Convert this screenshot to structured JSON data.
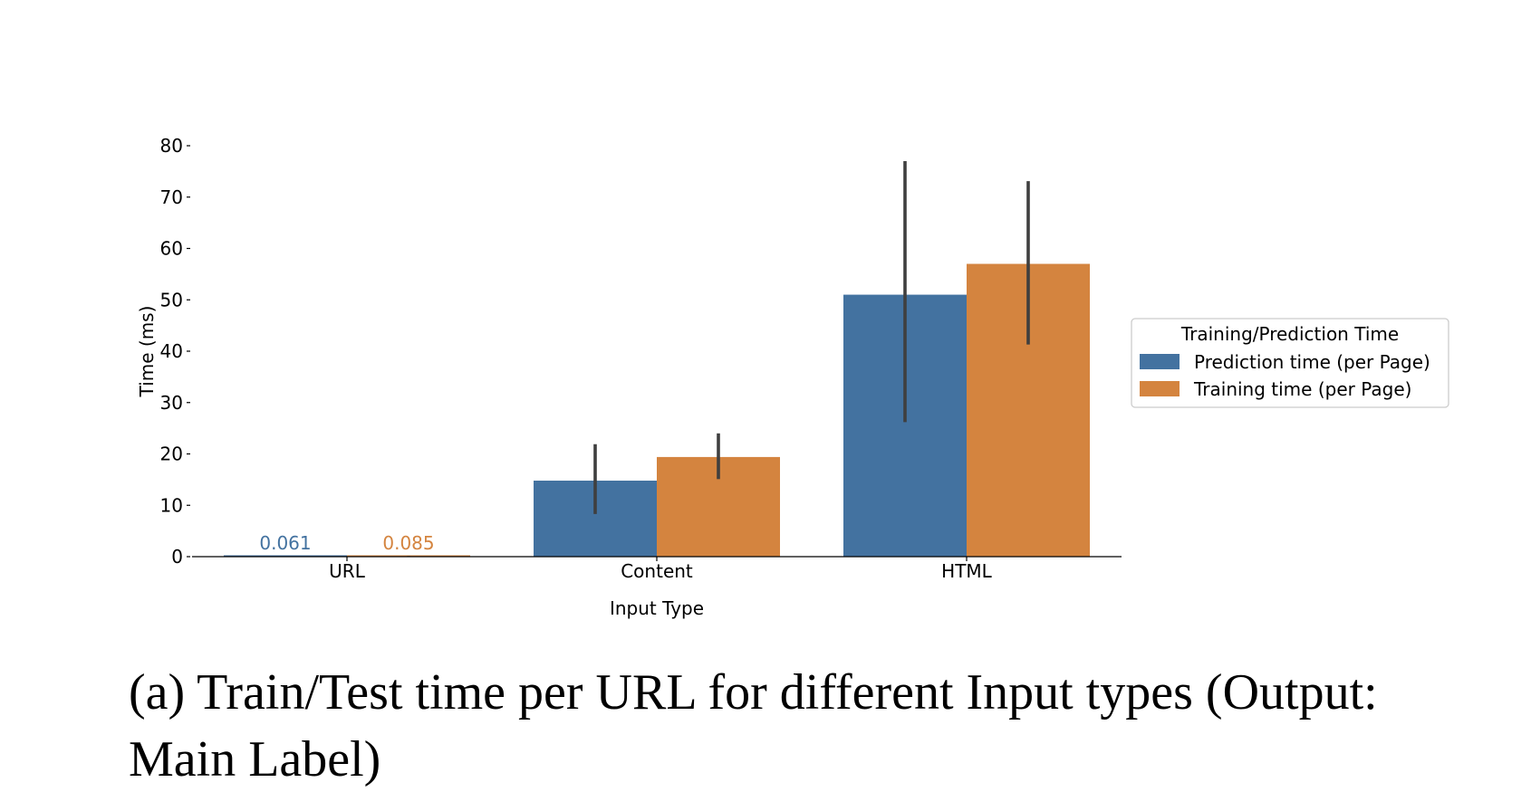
{
  "chart_data": {
    "type": "bar",
    "categories": [
      "URL",
      "Content",
      "HTML"
    ],
    "xlabel": "Input Type",
    "ylabel": "Time (ms)",
    "ylim": [
      0,
      80
    ],
    "yticks": [
      0,
      10,
      20,
      30,
      40,
      50,
      60,
      70,
      80
    ],
    "grid": false,
    "legend": {
      "title": "Training/Prediction Time",
      "placement": "right"
    },
    "series": [
      {
        "name": "Prediction time (per Page)",
        "color": "#4372a0",
        "values": [
          0.061,
          14.8,
          51
        ],
        "error_low": [
          0.03,
          8.3,
          26.2
        ],
        "error_high": [
          0.09,
          21.9,
          77
        ],
        "data_labels": [
          "0.061",
          "",
          ""
        ]
      },
      {
        "name": "Training time (per Page)",
        "color": "#d4843f",
        "values": [
          0.085,
          19.4,
          57
        ],
        "error_low": [
          0.05,
          15.1,
          41.3
        ],
        "error_high": [
          0.12,
          24,
          73.1
        ],
        "data_labels": [
          "0.085",
          "",
          ""
        ]
      }
    ]
  },
  "caption": "(a) Train/Test time per URL for different Input types (Output: Main Label)"
}
